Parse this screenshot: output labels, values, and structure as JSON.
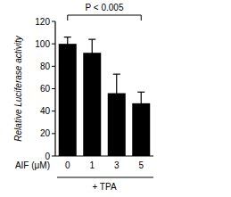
{
  "chart_data": {
    "type": "bar",
    "categories": [
      "0",
      "1",
      "3",
      "5"
    ],
    "values": [
      100,
      92,
      56,
      47
    ],
    "errors": [
      6,
      12,
      17,
      10
    ],
    "color": "#000000",
    "ylim": [
      0,
      120
    ],
    "yticks": [
      0,
      20,
      40,
      60,
      80,
      100,
      120
    ],
    "y_label": "Relative Luciferase activity",
    "x_label": "AIF (μM)",
    "annotations": [
      "P < 0.005",
      "+ TPA"
    ]
  }
}
